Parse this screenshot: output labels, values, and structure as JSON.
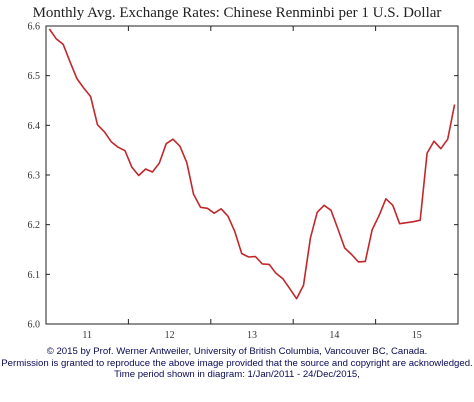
{
  "chart_data": {
    "type": "line",
    "title": "Monthly Avg. Exchange Rates: Chinese Renminbi per 1 U.S. Dollar",
    "xlabel": "",
    "ylabel": "",
    "xlim": [
      0,
      60
    ],
    "ylim": [
      6.0,
      6.6
    ],
    "yticks": [
      "6.6",
      "6.5",
      "6.4",
      "6.3",
      "6.2",
      "6.1",
      "6.0"
    ],
    "yticks_values": [
      6.6,
      6.5,
      6.4,
      6.3,
      6.2,
      6.1,
      6.0
    ],
    "xticks": [
      {
        "label": "11",
        "at": 6
      },
      {
        "label": "12",
        "at": 18
      },
      {
        "label": "13",
        "at": 30
      },
      {
        "label": "14",
        "at": 42
      },
      {
        "label": "15",
        "at": 54
      }
    ],
    "year_boundaries": [
      12,
      24,
      36,
      48
    ],
    "grid": false,
    "line_color": "#c0282c",
    "series": [
      {
        "values": [
          6.594,
          6.574,
          6.563,
          6.528,
          6.494,
          6.475,
          6.458,
          6.401,
          6.387,
          6.367,
          6.356,
          6.349,
          6.316,
          6.299,
          6.312,
          6.306,
          6.324,
          6.363,
          6.372,
          6.358,
          6.325,
          6.261,
          6.235,
          6.233,
          6.223,
          6.232,
          6.217,
          6.186,
          6.142,
          6.135,
          6.136,
          6.121,
          6.12,
          6.102,
          6.091,
          6.071,
          6.051,
          6.078,
          6.173,
          6.225,
          6.239,
          6.229,
          6.192,
          6.153,
          6.14,
          6.125,
          6.126,
          6.19,
          6.218,
          6.252,
          6.239,
          6.202,
          6.204,
          6.206,
          6.209,
          6.344,
          6.368,
          6.353,
          6.372,
          6.442
        ]
      }
    ]
  },
  "footer": {
    "line1": "© 2015 by Prof. Werner Antweiler, University of British Columbia, Vancouver BC, Canada.",
    "line2": "Permission is granted to reproduce the above image provided that the source and copyright are acknowledged.",
    "line3": "Time period shown in diagram: 1/Jan/2011 - 24/Dec/2015,"
  }
}
